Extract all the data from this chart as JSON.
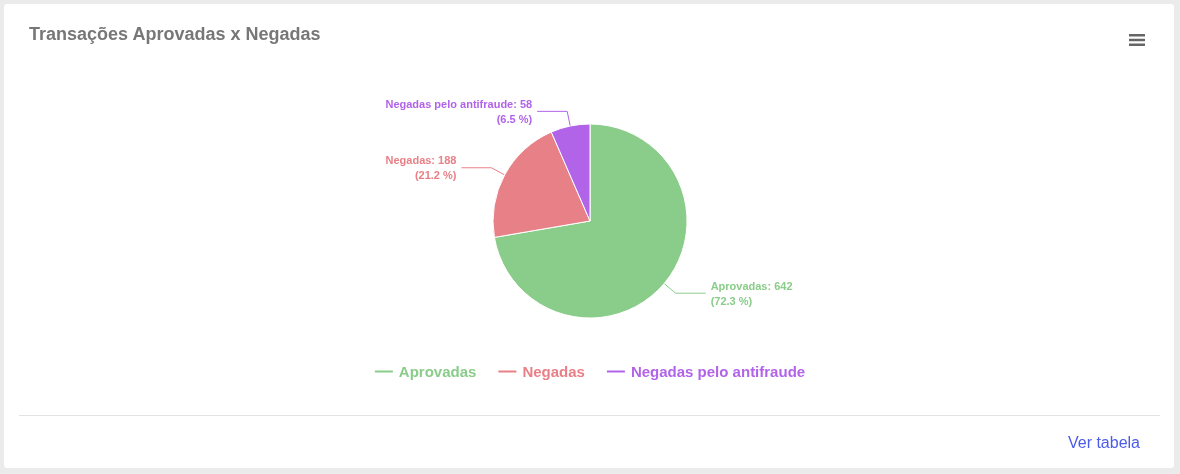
{
  "chart_data": {
    "type": "pie",
    "title": "Transações Aprovadas x Negadas",
    "categories": [
      "Aprovadas",
      "Negadas",
      "Negadas pelo antifraude"
    ],
    "values": [
      642,
      188,
      58
    ],
    "colors": [
      "#8acc8a",
      "#e88087",
      "#b264e8"
    ],
    "value_labels": [
      ": 642\n(72.3 %)",
      ": 188\n(21.2 %)",
      ": 58\n(6.5 %)"
    ],
    "legend": "bottom",
    "annotations": [
      "Ver tabela"
    ]
  }
}
